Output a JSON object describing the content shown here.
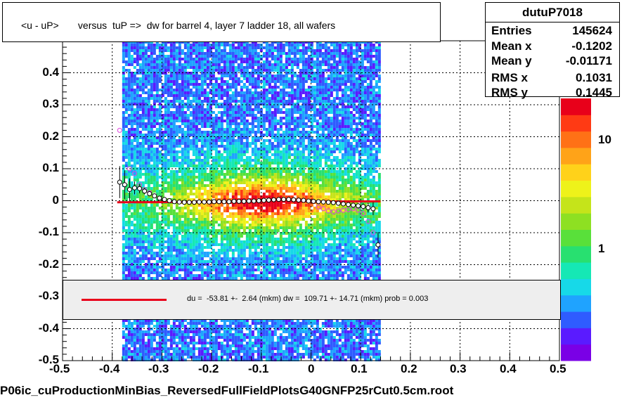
{
  "title": "<u - uP>       versus  tuP =>  dw for barrel 4, layer 7 ladder 18, all wafers",
  "stats": {
    "name": "dutuP7018",
    "rows": [
      {
        "label": "Entries",
        "value": "145624"
      },
      {
        "label": "Mean x",
        "value": "-0.1202"
      },
      {
        "label": "Mean y",
        "value": "-0.01171"
      },
      {
        "label": "RMS x",
        "value": "0.1031"
      },
      {
        "label": "RMS y",
        "value": "0.1445"
      }
    ]
  },
  "fit_text": "du =  -53.81 +-  2.64 (mkm) dw =  109.71 +- 14.71 (mkm) prob = 0.003",
  "footer": "P06ic_cuProductionMinBias_ReversedFullFieldPlotsG40GNFP25rCut0.5cm.root",
  "colors": {
    "fit_line": "#e8001a",
    "profile_black": "#000000",
    "profile_magenta": "#e040e0"
  },
  "chart_data": {
    "type": "heatmap",
    "xlim": [
      -0.5,
      0.5
    ],
    "ylim": [
      -0.5,
      0.5
    ],
    "x_ticks": [
      "-0.5",
      "-0.4",
      "-0.3",
      "-0.2",
      "-0.1",
      "0",
      "0.1",
      "0.2",
      "0.3",
      "0.4",
      "0.5"
    ],
    "y_ticks": [
      "-0.5",
      "-0.4",
      "-0.3",
      "-0.2",
      "-0.1",
      "0",
      "0.1",
      "0.2",
      "0.3",
      "0.4"
    ],
    "z_scale": "log",
    "z_ticks": [
      "1",
      "10"
    ],
    "grid": true,
    "occupied_x_range": [
      -0.38,
      0.14
    ],
    "fit_line": {
      "x": [
        -0.39,
        0.14
      ],
      "y": [
        -0.005,
        -0.002
      ]
    },
    "profile_black": {
      "x": [
        -0.385,
        -0.375,
        -0.365,
        -0.355,
        -0.345,
        -0.335,
        -0.325,
        -0.315,
        -0.305,
        -0.295,
        -0.285,
        -0.275,
        -0.265,
        -0.255,
        -0.245,
        -0.235,
        -0.225,
        -0.215,
        -0.205,
        -0.195,
        -0.185,
        -0.175,
        -0.165,
        -0.155,
        -0.145,
        -0.135,
        -0.125,
        -0.115,
        -0.105,
        -0.095,
        -0.085,
        -0.075,
        -0.065,
        -0.055,
        -0.045,
        -0.035,
        -0.025,
        -0.015,
        -0.005,
        0.005,
        0.015,
        0.025,
        0.035,
        0.045,
        0.055,
        0.065,
        0.075,
        0.085,
        0.095,
        0.105,
        0.115,
        0.125,
        0.135
      ],
      "y": [
        0.058,
        0.05,
        0.035,
        0.04,
        0.038,
        0.03,
        0.022,
        0.015,
        0.008,
        0.004,
        0.0,
        -0.003,
        -0.004,
        -0.005,
        -0.005,
        -0.005,
        -0.004,
        -0.004,
        -0.004,
        -0.003,
        -0.003,
        -0.003,
        -0.003,
        -0.002,
        -0.002,
        -0.002,
        -0.001,
        -0.001,
        0.0,
        0.001,
        0.002,
        0.003,
        0.004,
        0.004,
        0.004,
        0.003,
        0.002,
        0.001,
        -0.001,
        -0.002,
        -0.003,
        -0.004,
        -0.005,
        -0.006,
        -0.008,
        -0.01,
        -0.012,
        -0.014,
        -0.016,
        -0.018,
        -0.022,
        -0.025,
        -0.138
      ],
      "err": [
        0.05,
        0.045,
        0.035,
        0.02,
        0.015,
        0.01,
        0.008,
        0.006,
        0.005,
        0.004,
        0.003,
        0.003,
        0.003,
        0.002,
        0.002,
        0.002,
        0.002,
        0.002,
        0.002,
        0.002,
        0.002,
        0.002,
        0.002,
        0.002,
        0.002,
        0.002,
        0.002,
        0.002,
        0.002,
        0.002,
        0.002,
        0.002,
        0.002,
        0.002,
        0.002,
        0.002,
        0.002,
        0.002,
        0.002,
        0.002,
        0.003,
        0.003,
        0.003,
        0.003,
        0.004,
        0.004,
        0.005,
        0.006,
        0.008,
        0.01,
        0.015,
        0.02,
        0.04
      ]
    },
    "profile_magenta": {
      "x": [
        -0.385,
        -0.365,
        -0.355,
        -0.345,
        -0.335,
        -0.325,
        -0.315,
        -0.305,
        0.015,
        0.025,
        0.035,
        0.045,
        0.055,
        0.065,
        0.075,
        0.085,
        0.095,
        0.105,
        0.115,
        0.125
      ],
      "y": [
        0.22,
        0.1,
        0.085,
        0.05,
        0.035,
        0.025,
        0.015,
        0.008,
        -0.02,
        -0.025,
        -0.032,
        -0.035,
        -0.032,
        -0.03,
        -0.028,
        -0.025,
        -0.03,
        -0.04,
        -0.065,
        -0.1
      ]
    }
  }
}
